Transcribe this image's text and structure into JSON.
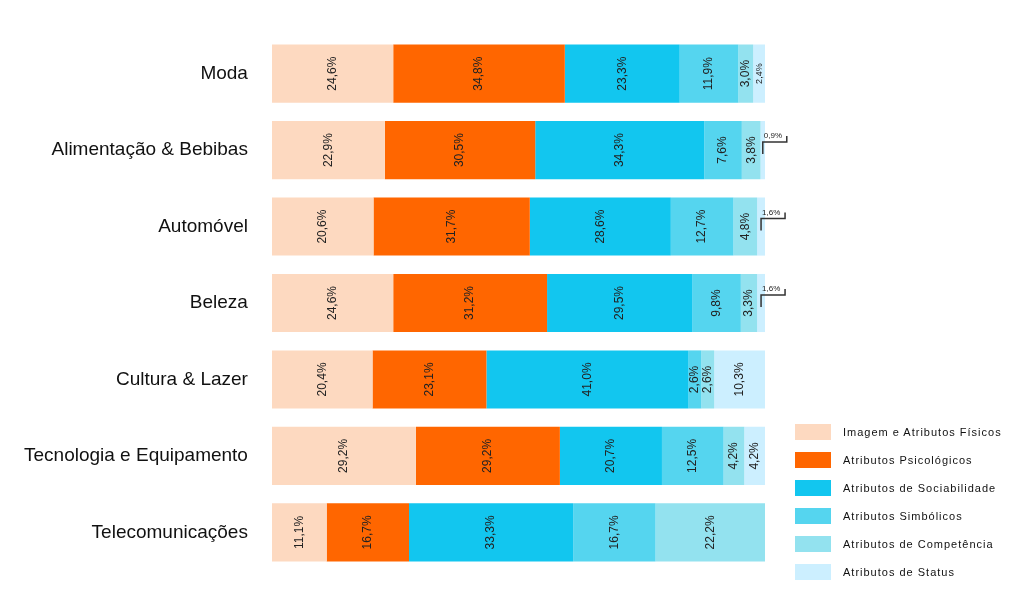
{
  "chart_data": {
    "type": "bar",
    "orientation": "horizontal",
    "stacked": true,
    "categories": [
      "Moda",
      "Alimentação & Bebibas",
      "Automóvel",
      "Beleza",
      "Cultura & Lazer",
      "Tecnologia e Equipamento",
      "Telecomunicações"
    ],
    "series": [
      {
        "name": "Imagem e Atributos Físicos",
        "color": "#fdd9c0",
        "values": [
          24.6,
          22.9,
          20.6,
          24.6,
          20.4,
          29.2,
          11.1
        ],
        "value_labels": [
          "24,6%",
          "22,9%",
          "20,6%",
          "24,6%",
          "20,4%",
          "29,2%",
          "11,1%"
        ]
      },
      {
        "name": "Atributos Psicológicos",
        "color": "#ff6600",
        "values": [
          34.8,
          30.5,
          31.7,
          31.2,
          23.1,
          29.2,
          16.7
        ],
        "value_labels": [
          "34,8%",
          "30,5%",
          "31,7%",
          "31,2%",
          "23,1%",
          "29,2%",
          "16,7%"
        ]
      },
      {
        "name": "Atributos de Sociabilidade",
        "color": "#12c6ef",
        "values": [
          23.3,
          34.3,
          28.6,
          29.5,
          41.0,
          20.7,
          33.3
        ],
        "value_labels": [
          "23,3%",
          "34,3%",
          "28,6%",
          "29,5%",
          "41,0%",
          "20,7%",
          "33,3%"
        ]
      },
      {
        "name": "Atributos Simbólicos",
        "color": "#55d5ef",
        "values": [
          11.9,
          7.6,
          12.7,
          9.8,
          2.6,
          12.5,
          16.7
        ],
        "value_labels": [
          "11,9%",
          "7,6%",
          "12,7%",
          "9,8%",
          "2,6%",
          "12,5%",
          "16,7%"
        ]
      },
      {
        "name": "Atributos de Competência",
        "color": "#93e2ef",
        "values": [
          3.0,
          3.8,
          4.8,
          3.3,
          2.6,
          4.2,
          22.2
        ],
        "value_labels": [
          "3,0%",
          "3,8%",
          "4,8%",
          "3,3%",
          "2,6%",
          "4,2%",
          "22,2%"
        ]
      },
      {
        "name": "Atributos de Status",
        "color": "#ccefff",
        "values": [
          2.4,
          0.9,
          1.6,
          1.6,
          10.3,
          4.2,
          null
        ],
        "value_labels": [
          "2,4%",
          "0,9%",
          "1,6%",
          "1,6%",
          "10,3%",
          "4,2%",
          null
        ]
      }
    ],
    "xlim": [
      0,
      100
    ],
    "tick_labels": "y",
    "legend": "bottom right"
  }
}
